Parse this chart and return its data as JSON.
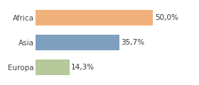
{
  "categories": [
    "Africa",
    "Asia",
    "Europa"
  ],
  "values": [
    50.0,
    35.7,
    14.3
  ],
  "bar_colors": [
    "#f0b27a",
    "#7f9fbf",
    "#b5c99a"
  ],
  "labels": [
    "50,0%",
    "35,7%",
    "14,3%"
  ],
  "background_color": "#ffffff",
  "xlim": [
    0,
    68
  ],
  "label_fontsize": 7.5,
  "tick_fontsize": 7.5,
  "bar_height": 0.62
}
